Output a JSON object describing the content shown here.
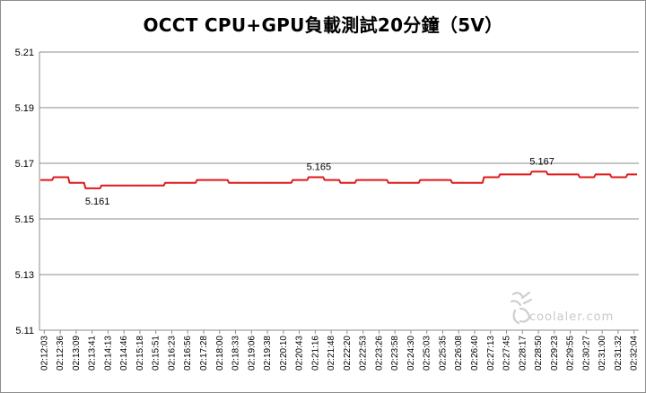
{
  "chart_data": {
    "type": "line",
    "title": "OCCT CPU+GPU負載測試20分鐘（5V）",
    "xlabel": "",
    "ylabel": "",
    "ylim": [
      5.11,
      5.21
    ],
    "yticks": [
      "5.11",
      "5.13",
      "5.15",
      "5.17",
      "5.19",
      "5.21"
    ],
    "grid": "horizontal",
    "legend": "none",
    "x": [
      "02:12:03",
      "02:12:36",
      "02:13:09",
      "02:13:41",
      "02:14:13",
      "02:14:46",
      "02:15:18",
      "02:15:51",
      "02:16:23",
      "02:16:56",
      "02:17:28",
      "02:18:00",
      "02:18:33",
      "02:19:06",
      "02:19:38",
      "02:20:10",
      "02:20:43",
      "02:21:16",
      "02:21:48",
      "02:22:20",
      "02:22:53",
      "02:23:26",
      "02:23:58",
      "02:24:30",
      "02:25:03",
      "02:25:35",
      "02:26:08",
      "02:26:40",
      "02:27:13",
      "02:27:45",
      "02:28:17",
      "02:28:50",
      "02:29:23",
      "02:29:55",
      "02:30:27",
      "02:31:00",
      "02:31:32",
      "02:32:04"
    ],
    "series": [
      {
        "values": [
          5.164,
          5.165,
          5.163,
          5.161,
          5.162,
          5.162,
          5.162,
          5.162,
          5.163,
          5.163,
          5.164,
          5.164,
          5.163,
          5.163,
          5.163,
          5.163,
          5.164,
          5.165,
          5.164,
          5.163,
          5.164,
          5.164,
          5.163,
          5.163,
          5.164,
          5.164,
          5.163,
          5.163,
          5.165,
          5.166,
          5.166,
          5.167,
          5.166,
          5.166,
          5.165,
          5.166,
          5.165,
          5.166
        ],
        "color": "#e01a1a"
      }
    ],
    "annotations": [
      {
        "text": "5.161",
        "x": "02:13:41",
        "y": 5.161
      },
      {
        "text": "5.165",
        "x": "02:21:16",
        "y": 5.165
      },
      {
        "text": "5.167",
        "x": "02:28:50",
        "y": 5.167
      }
    ]
  },
  "watermark": {
    "text": "coolaler.com"
  }
}
